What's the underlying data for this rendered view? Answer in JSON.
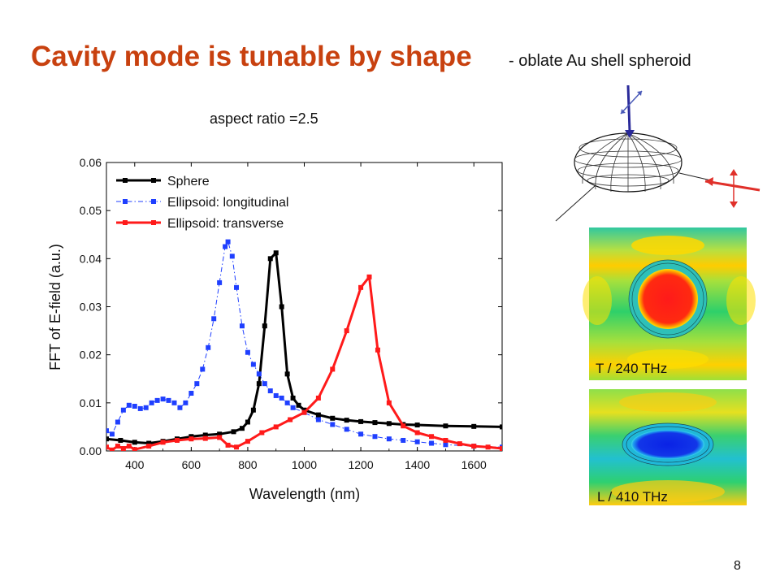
{
  "slide": {
    "title": "Cavity mode is tunable by shape",
    "subtitle": "-   oblate Au shell spheroid",
    "aspect_label": "aspect ratio =2.5",
    "page_number": "8"
  },
  "field_maps": [
    {
      "label": "T / 240 THz",
      "core_color": "#ff1a1a"
    },
    {
      "label": "L / 410 THz",
      "core_color": "#0a22e6"
    }
  ],
  "colors": {
    "title": "#c8410f",
    "sphere": "#000000",
    "longitudinal": "#1f3fff",
    "transverse": "#ff1a1a",
    "arrow_blue": "#3a3aa8",
    "arrow_red": "#e0302a"
  },
  "chart_data": {
    "type": "line",
    "title": "",
    "xlabel": "Wavelength (nm)",
    "ylabel": "FFT of E-field (a.u.)",
    "xlim": [
      300,
      1700
    ],
    "ylim": [
      0,
      0.06
    ],
    "xticks": [
      "400",
      "600",
      "800",
      "1000",
      "1200",
      "1400",
      "1600"
    ],
    "yticks": [
      "0.00",
      "0.01",
      "0.02",
      "0.03",
      "0.04",
      "0.05",
      "0.06"
    ],
    "legend_position": "top-left",
    "series": [
      {
        "name": "Sphere",
        "color": "#000000",
        "marker": "square",
        "line_style": "solid",
        "x": [
          300,
          350,
          400,
          450,
          500,
          550,
          600,
          650,
          700,
          750,
          780,
          800,
          820,
          840,
          860,
          880,
          900,
          920,
          940,
          960,
          980,
          1000,
          1050,
          1100,
          1150,
          1200,
          1250,
          1300,
          1350,
          1400,
          1500,
          1600,
          1700
        ],
        "y": [
          0.0025,
          0.0022,
          0.0018,
          0.0016,
          0.002,
          0.0025,
          0.003,
          0.0033,
          0.0035,
          0.004,
          0.0047,
          0.006,
          0.0085,
          0.014,
          0.026,
          0.04,
          0.0412,
          0.03,
          0.016,
          0.011,
          0.0095,
          0.0085,
          0.0075,
          0.0068,
          0.0064,
          0.0061,
          0.0059,
          0.0057,
          0.0055,
          0.0054,
          0.0052,
          0.0051,
          0.005
        ]
      },
      {
        "name": "Ellipsoid: longitudinal",
        "color": "#1f3fff",
        "marker": "square",
        "line_style": "dash-dot",
        "x": [
          300,
          320,
          340,
          360,
          380,
          400,
          420,
          440,
          460,
          480,
          500,
          520,
          540,
          560,
          580,
          600,
          620,
          640,
          660,
          680,
          700,
          720,
          730,
          745,
          760,
          780,
          800,
          820,
          840,
          860,
          880,
          900,
          920,
          940,
          960,
          1000,
          1050,
          1100,
          1150,
          1200,
          1250,
          1300,
          1350,
          1400,
          1450,
          1500,
          1600,
          1700
        ],
        "y": [
          0.0042,
          0.0035,
          0.006,
          0.0085,
          0.0095,
          0.0093,
          0.0088,
          0.009,
          0.01,
          0.0105,
          0.0108,
          0.0105,
          0.01,
          0.009,
          0.01,
          0.012,
          0.014,
          0.017,
          0.0215,
          0.0275,
          0.035,
          0.0425,
          0.0435,
          0.0405,
          0.034,
          0.026,
          0.0205,
          0.018,
          0.016,
          0.014,
          0.0125,
          0.0115,
          0.011,
          0.01,
          0.009,
          0.008,
          0.0065,
          0.0055,
          0.0045,
          0.0035,
          0.003,
          0.0025,
          0.0022,
          0.0019,
          0.0016,
          0.0013,
          0.001,
          0.0008
        ]
      },
      {
        "name": "Ellipsoid: transverse",
        "color": "#ff1a1a",
        "marker": "square",
        "line_style": "solid",
        "x": [
          300,
          320,
          340,
          360,
          380,
          400,
          450,
          500,
          550,
          600,
          650,
          700,
          730,
          760,
          800,
          850,
          900,
          950,
          1000,
          1050,
          1100,
          1150,
          1200,
          1230,
          1260,
          1300,
          1350,
          1400,
          1450,
          1500,
          1550,
          1600,
          1650,
          1700
        ],
        "y": [
          0.0008,
          0.0002,
          0.001,
          0.0005,
          0.001,
          0.0003,
          0.001,
          0.0018,
          0.0022,
          0.0025,
          0.0026,
          0.0028,
          0.0012,
          0.0008,
          0.002,
          0.0038,
          0.005,
          0.0065,
          0.008,
          0.011,
          0.017,
          0.025,
          0.034,
          0.0362,
          0.021,
          0.01,
          0.0052,
          0.0038,
          0.003,
          0.0022,
          0.0015,
          0.001,
          0.0008,
          0.0005
        ]
      }
    ]
  }
}
